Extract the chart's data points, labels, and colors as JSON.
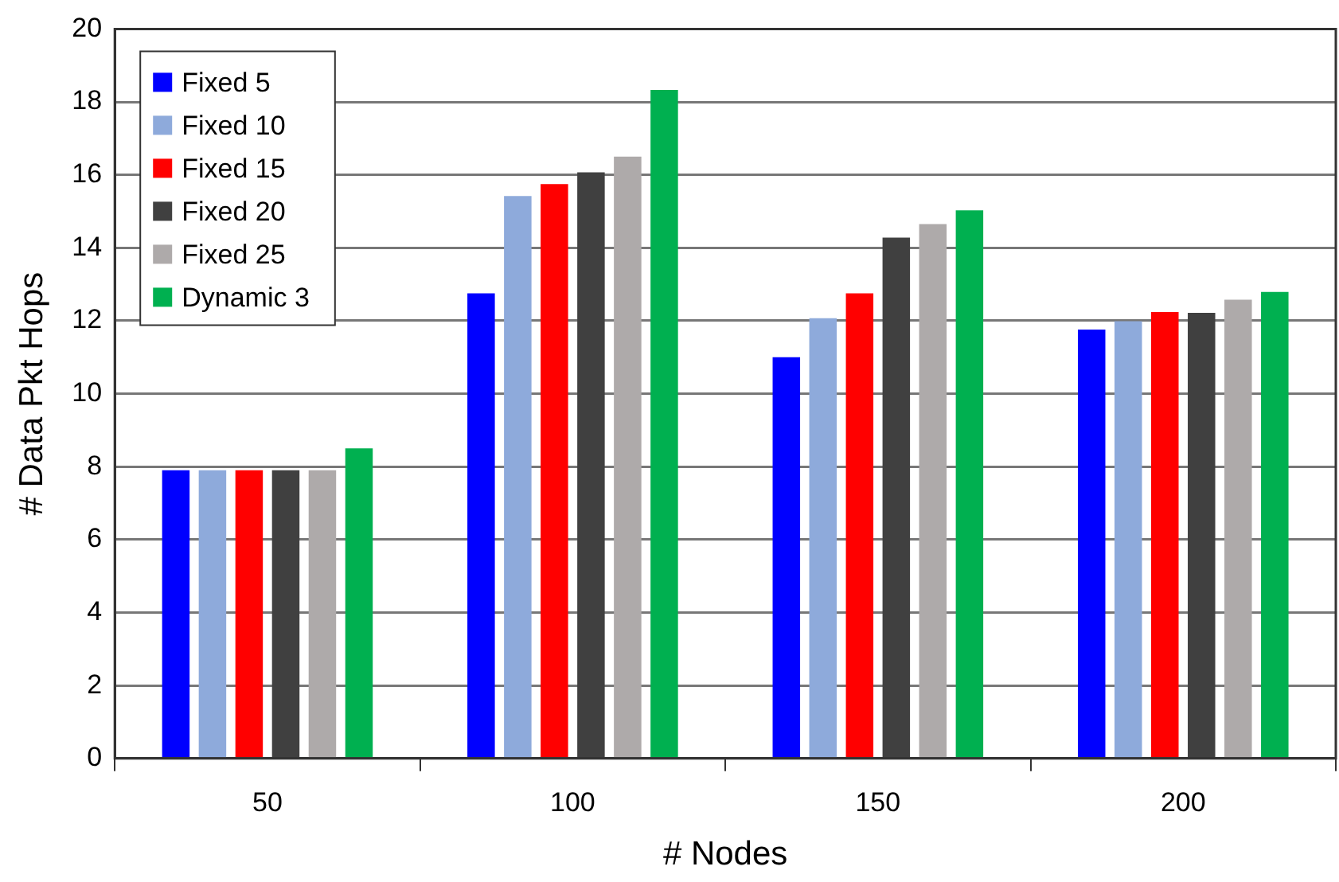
{
  "chart_data": {
    "type": "bar",
    "xlabel": "# Nodes",
    "ylabel": "# Data Pkt Hops",
    "categories": [
      "50",
      "100",
      "150",
      "200"
    ],
    "series": [
      {
        "name": "Fixed 5",
        "color": "#0000ff",
        "values": [
          7.9,
          12.75,
          11.0,
          11.76
        ]
      },
      {
        "name": "Fixed 10",
        "color": "#8eaadb",
        "values": [
          7.9,
          15.42,
          12.07,
          11.99
        ]
      },
      {
        "name": "Fixed 15",
        "color": "#ff0000",
        "values": [
          7.9,
          15.75,
          12.75,
          12.24
        ]
      },
      {
        "name": "Fixed 20",
        "color": "#404040",
        "values": [
          7.9,
          16.07,
          14.28,
          12.22
        ]
      },
      {
        "name": "Fixed 25",
        "color": "#aeaaaa",
        "values": [
          7.9,
          16.5,
          14.65,
          12.58
        ]
      },
      {
        "name": "Dynamic 3",
        "color": "#00b050",
        "values": [
          8.5,
          18.33,
          15.03,
          12.79
        ]
      }
    ],
    "ylim": [
      0,
      20
    ],
    "yticks": [
      0,
      2,
      4,
      6,
      8,
      10,
      12,
      14,
      16,
      18,
      20
    ],
    "grid": "y",
    "legend": "top left"
  }
}
